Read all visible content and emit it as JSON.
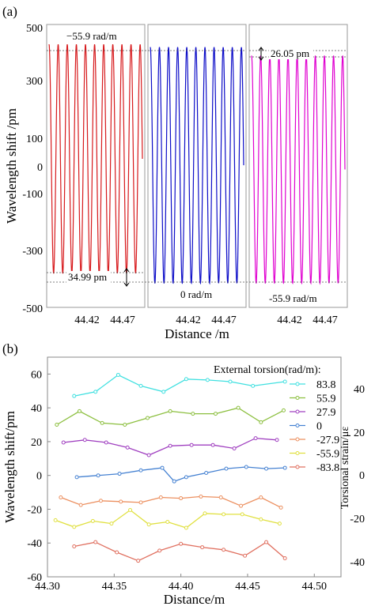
{
  "panel_a": {
    "label": "(a)",
    "xlabel": "Distance /m",
    "ylabel": "Wavelength shift /pm",
    "yticks": [
      "500",
      "300",
      "100",
      "0",
      "-100",
      "-300",
      "-500"
    ],
    "subplots": [
      {
        "name": "subplot-left",
        "color": "#d7191c",
        "xticks": [
          "44.42",
          "44.47"
        ],
        "annotations": [
          {
            "text": "−55.9 rad/m"
          },
          {
            "text": "34.99 pm"
          }
        ]
      },
      {
        "name": "subplot-middle",
        "color": "#0d0dc8",
        "xticks": [
          "44.42",
          "44.47"
        ],
        "annotations": [
          {
            "text": "0 rad/m"
          }
        ]
      },
      {
        "name": "subplot-right",
        "color": "#e000d0",
        "xticks": [
          "44.42",
          "44.47"
        ],
        "annotations": [
          {
            "text": "26.05 pm"
          },
          {
            "text": "-55.9 rad/m"
          }
        ]
      }
    ]
  },
  "panel_b": {
    "label": "(b)",
    "legend_title": "External torsion(rad/m):",
    "right_ylabel": "Torsional strain/με",
    "right_ticks": [
      "40",
      "20",
      "0",
      "-20",
      "-40"
    ]
  },
  "chart_data": [
    {
      "type": "line",
      "title": "",
      "xlabel": "Distance /m",
      "ylabel": "Wavelength shift /pm",
      "ylim": [
        -500,
        500
      ],
      "series": [
        {
          "name": "−55.9 rad/m",
          "color": "#d7191c",
          "amplitude_pm": [
            -380,
            430
          ],
          "periods": 10
        },
        {
          "name": "0 rad/m",
          "color": "#0d0dc8",
          "amplitude_pm": [
            -415,
            420
          ],
          "periods": 10
        },
        {
          "name": "-55.9 rad/m",
          "color": "#e000d0",
          "amplitude_pm": [
            -415,
            390
          ],
          "periods": 10
        }
      ],
      "annotations": [
        "34.99 pm",
        "26.05 pm"
      ]
    },
    {
      "type": "line",
      "title": "",
      "xlabel": "Distance/m",
      "ylabel": "Wavelength shift/pm",
      "y2label": "Torsional strain/με",
      "xlim": [
        44.3,
        44.52
      ],
      "ylim": [
        -60,
        70
      ],
      "xticks": [
        44.3,
        44.35,
        44.4,
        44.45,
        44.5
      ],
      "yticks": [
        -60,
        -40,
        -20,
        0,
        20,
        40,
        60
      ],
      "legend_position": "right",
      "grid": false,
      "series": [
        {
          "name": "83.8",
          "color": "#40e0e0",
          "x": [
            44.32,
            44.336,
            44.353,
            44.37,
            44.387,
            44.404,
            44.42,
            44.437,
            44.454,
            44.478
          ],
          "y": [
            47,
            49.5,
            59.5,
            53,
            49.5,
            57,
            56.5,
            55.5,
            53,
            55.5
          ]
        },
        {
          "name": "55.9",
          "color": "#8cbf3f",
          "x": [
            44.307,
            44.324,
            44.341,
            44.358,
            44.375,
            44.392,
            44.409,
            44.426,
            44.443,
            44.46,
            44.477
          ],
          "y": [
            30,
            38,
            31,
            30,
            34,
            38,
            36.5,
            36.5,
            40,
            31.5,
            38.5
          ]
        },
        {
          "name": "27.9",
          "color": "#a040c0",
          "x": [
            44.312,
            44.328,
            44.344,
            44.36,
            44.376,
            44.392,
            44.408,
            44.424,
            44.44,
            44.456,
            44.472
          ],
          "y": [
            19.5,
            21,
            19.5,
            16.5,
            12,
            17.5,
            18,
            18,
            16,
            22,
            21
          ]
        },
        {
          "name": "0",
          "color": "#4682d2",
          "x": [
            44.322,
            44.338,
            44.354,
            44.37,
            44.386,
            44.395,
            44.404,
            44.419,
            44.434,
            44.449,
            44.464,
            44.478
          ],
          "y": [
            -1,
            0,
            1,
            3,
            4.5,
            -3.5,
            -1,
            1.5,
            4,
            5,
            4,
            4.5
          ]
        },
        {
          "name": "-27.9",
          "color": "#ec9060",
          "x": [
            44.31,
            44.325,
            44.34,
            44.355,
            44.37,
            44.385,
            44.4,
            44.415,
            44.43,
            44.445,
            44.46,
            44.475
          ],
          "y": [
            -13,
            -17.5,
            -15,
            -15.5,
            -16,
            -13,
            -13.5,
            -12.5,
            -13,
            -18,
            -13,
            -19
          ]
        },
        {
          "name": "-55.9",
          "color": "#e0e040",
          "x": [
            44.306,
            44.32,
            44.334,
            44.348,
            44.362,
            44.376,
            44.39,
            44.404,
            44.418,
            44.432,
            44.446,
            44.46,
            44.474
          ],
          "y": [
            -26.5,
            -30.5,
            -27,
            -28.5,
            -20.5,
            -29,
            -27.5,
            -31,
            -22.5,
            -23,
            -23,
            -26,
            -28.5
          ]
        },
        {
          "name": "-83.8",
          "color": "#e07060",
          "x": [
            44.32,
            44.336,
            44.352,
            44.368,
            44.384,
            44.4,
            44.416,
            44.432,
            44.448,
            44.464,
            44.478
          ],
          "y": [
            -42,
            -39.5,
            -45.5,
            -50.5,
            -44.5,
            -40.5,
            -42.5,
            -44,
            -47.5,
            -39.5,
            -49
          ]
        }
      ]
    }
  ]
}
